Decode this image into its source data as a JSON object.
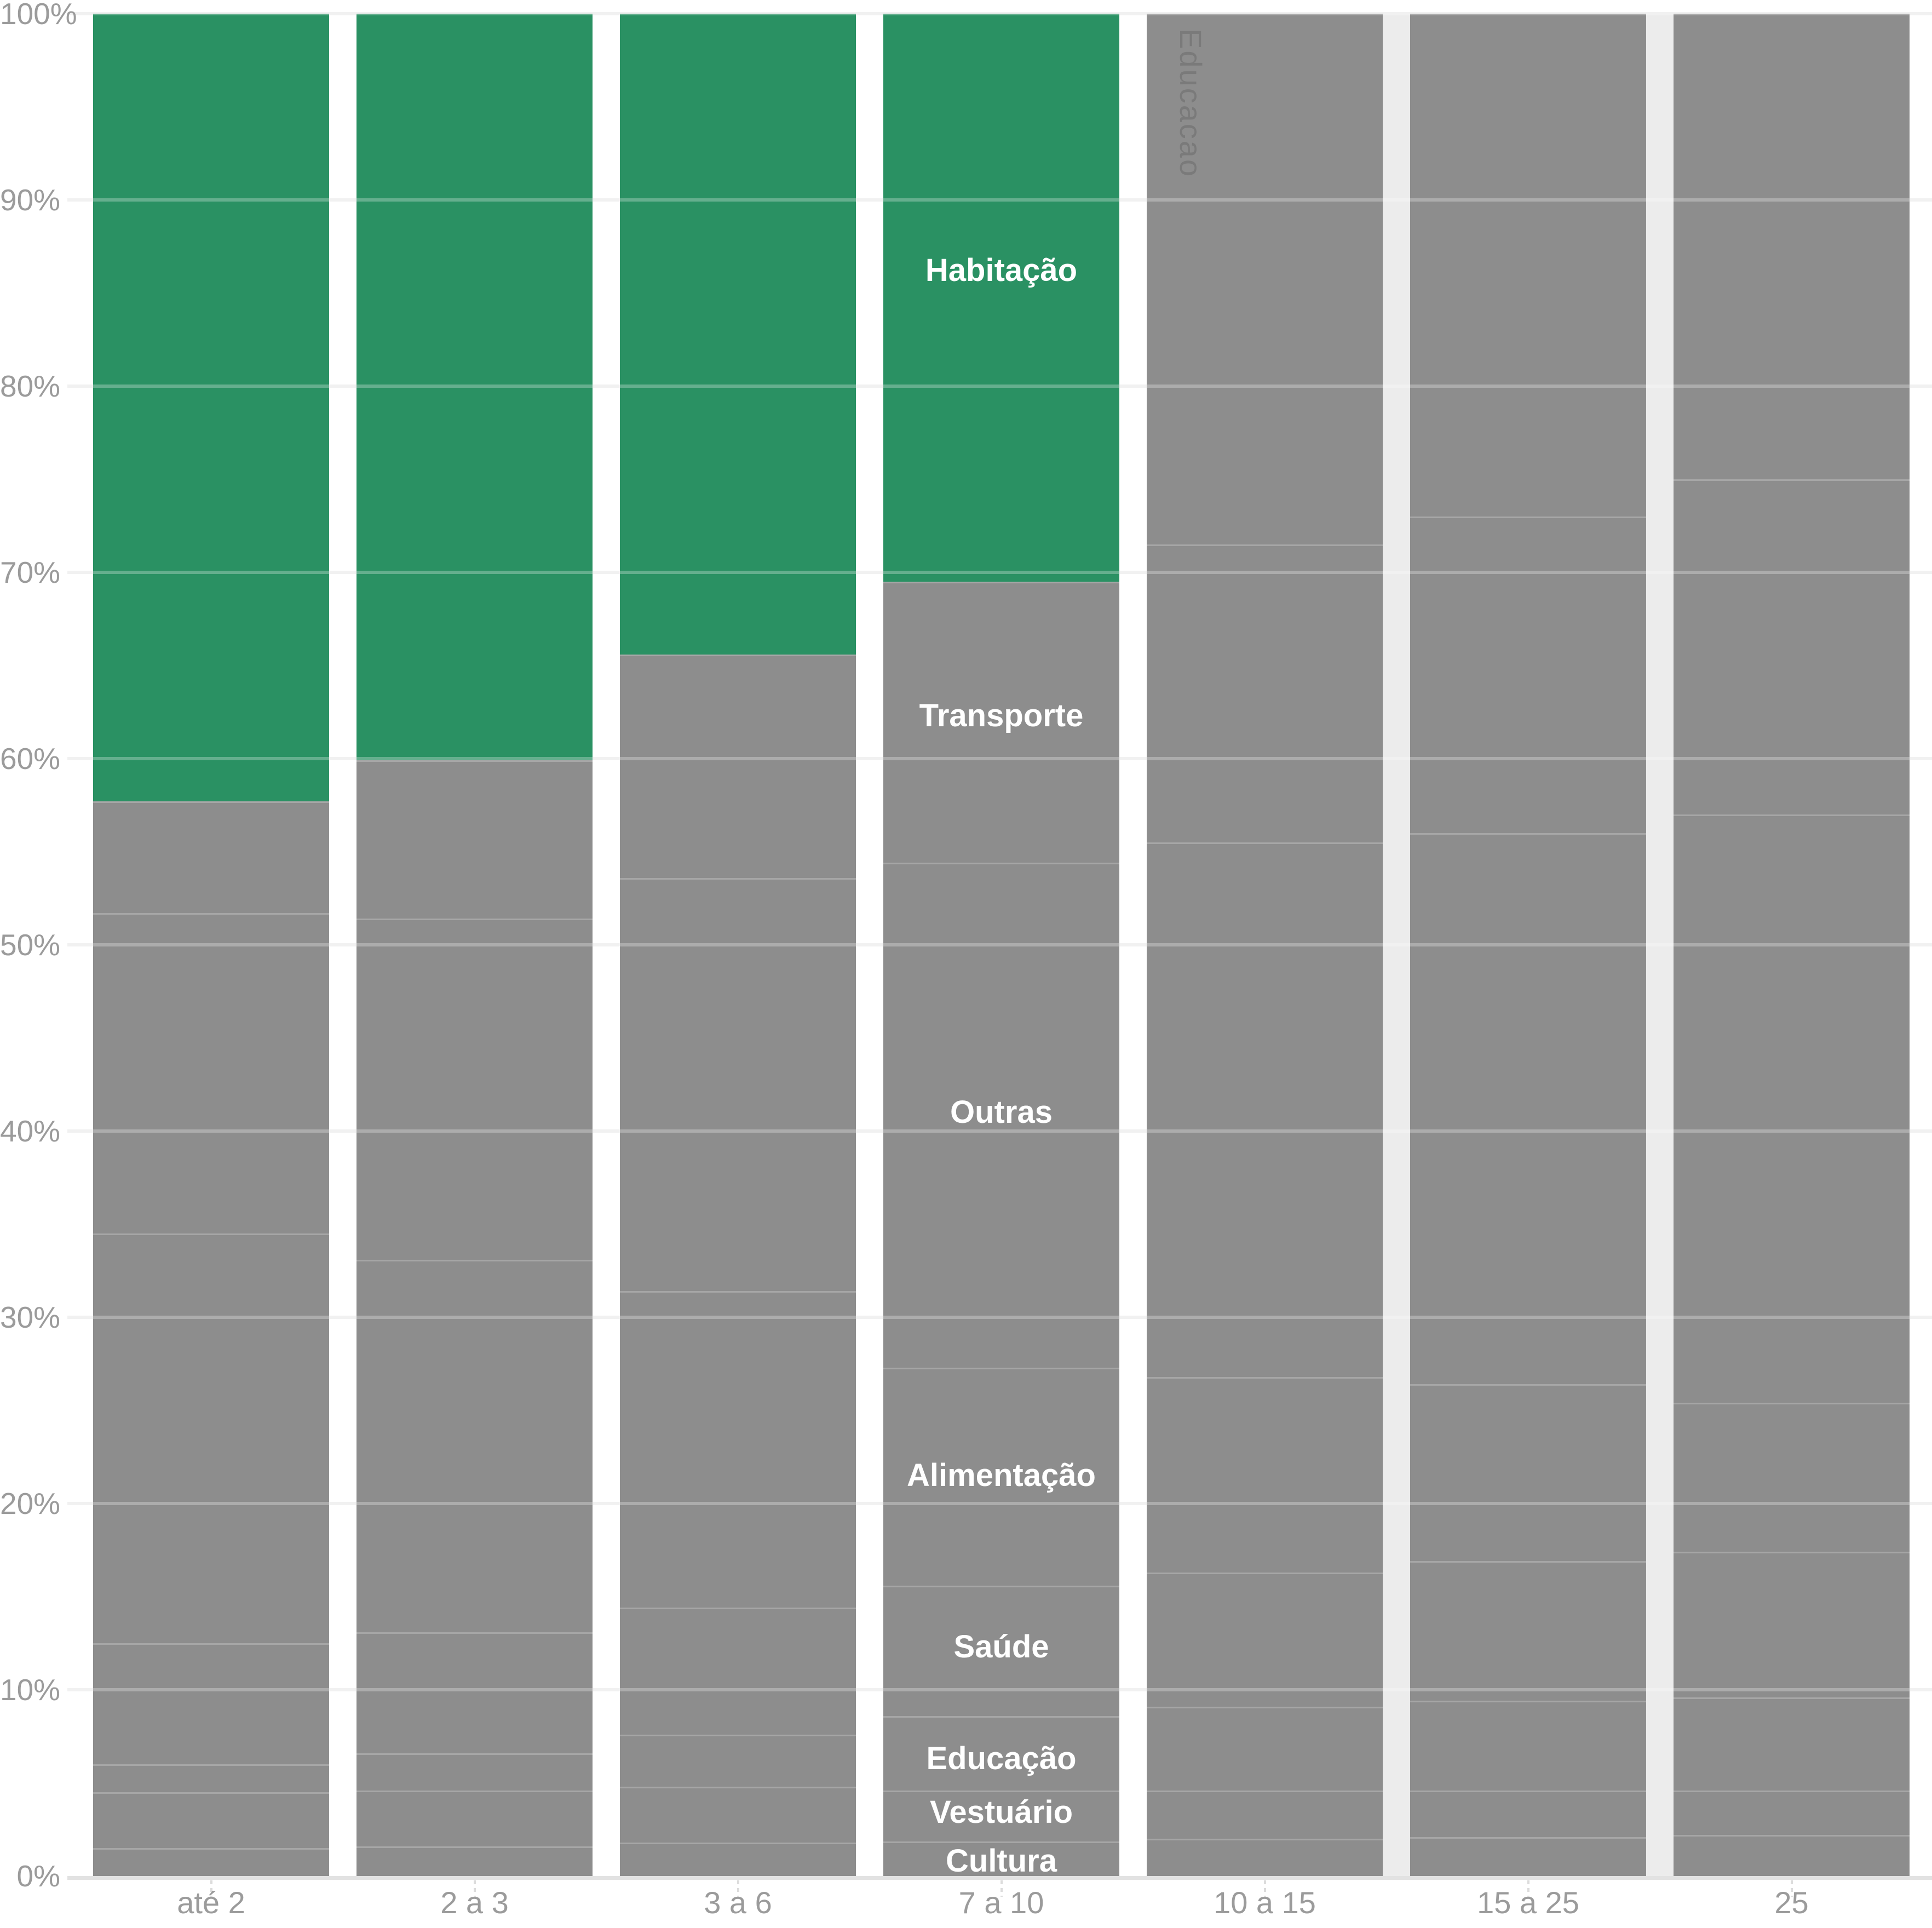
{
  "chart_data": {
    "type": "bar",
    "variant": "stacked-100-percent",
    "title": "",
    "xlabel": "",
    "ylabel": "",
    "categories": [
      "até 2",
      "2 a 3",
      "3 a 6",
      "7 a 10",
      "10 a 15",
      "15 a 25",
      "25"
    ],
    "series": [
      {
        "name": "Cultura",
        "values": [
          1.5,
          1.6,
          1.8,
          1.85,
          2.0,
          2.1,
          2.2
        ]
      },
      {
        "name": "Vestuário",
        "values": [
          3.0,
          3.0,
          3.0,
          2.75,
          2.6,
          2.5,
          2.4
        ]
      },
      {
        "name": "Educação",
        "values": [
          1.5,
          2.0,
          2.8,
          4.0,
          4.5,
          4.8,
          5.0
        ]
      },
      {
        "name": "Saúde",
        "values": [
          6.5,
          6.5,
          6.8,
          7.0,
          7.2,
          7.5,
          7.8
        ]
      },
      {
        "name": "Alimentação",
        "values": [
          22.0,
          20.0,
          17.0,
          11.7,
          10.5,
          9.5,
          8.0
        ]
      },
      {
        "name": "Outras",
        "values": [
          17.2,
          18.3,
          22.2,
          27.1,
          28.7,
          29.6,
          31.6
        ]
      },
      {
        "name": "Transporte",
        "values": [
          6.0,
          8.5,
          12.0,
          15.1,
          16.0,
          17.0,
          18.0
        ]
      },
      {
        "name": "Habitação",
        "values": [
          42.3,
          40.1,
          34.4,
          30.5,
          28.5,
          27.0,
          25.0
        ]
      }
    ],
    "habitacao_share_pct_by_category": [
      42.3,
      40.1,
      34.4,
      30.5,
      null,
      null,
      null
    ],
    "highlight": {
      "series": "Habitação",
      "categories": [
        "até 2",
        "2 a 3",
        "3 a 6",
        "7 a 10"
      ]
    },
    "y_axis": {
      "min": 0,
      "max": 100,
      "tick_step": 10,
      "ticks": [
        "0%",
        "10%",
        "20%",
        "30%",
        "40%",
        "50%",
        "60%",
        "70%",
        "80%",
        "90%",
        "100%"
      ],
      "grid": true
    },
    "legend": "none",
    "segment_labels": {
      "category": "7 a 10",
      "labels": [
        {
          "text": "Habitação",
          "at_pct": 86.2
        },
        {
          "text": "Transporte",
          "at_pct": 62.3
        },
        {
          "text": "Outras",
          "at_pct": 41.0
        },
        {
          "text": "Alimentação",
          "at_pct": 21.5
        },
        {
          "text": "Saúde",
          "at_pct": 12.3
        },
        {
          "text": "Educação",
          "at_pct": 6.3
        },
        {
          "text": "Vestuário",
          "at_pct": 3.4
        },
        {
          "text": "Cultura",
          "at_pct": 0.8
        }
      ]
    },
    "watermark": {
      "text": "Educacao",
      "category": "10 a 15"
    },
    "muted_gap_after_categories": [
      "10 a 15",
      "15 a 25"
    ]
  },
  "colors": {
    "highlight_green": "#2a9163",
    "bar_gray": "#8d8d8d",
    "grid": "#ececec",
    "axis_zero_line": "#e2e2e2",
    "axis_text": "#9b9b9b",
    "segment_label_text": "#ffffff",
    "gap_muted": "#ececec",
    "tick_dash": "#dcdcdc",
    "background": "#ffffff",
    "watermark_text": "rgba(0,0,0,0.13)"
  }
}
